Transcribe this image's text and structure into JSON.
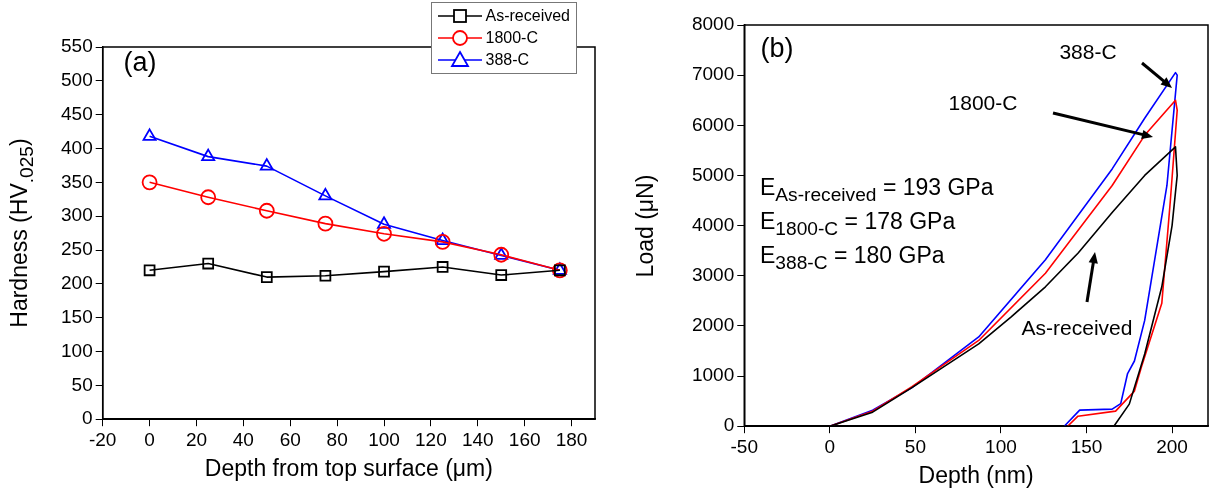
{
  "chart_data": [
    {
      "type": "line",
      "xlabel": "Depth from top surface (μm)",
      "ylabel": "Hardness (HV$_{.025}$)",
      "annotations": [
        "(a)"
      ],
      "x": [
        0,
        25,
        50,
        75,
        100,
        125,
        150,
        175
      ],
      "xlim": [
        -20,
        190
      ],
      "xticks": [
        -20,
        0,
        20,
        40,
        60,
        80,
        100,
        120,
        140,
        160,
        180
      ],
      "ylim": [
        0,
        550
      ],
      "yticks": [
        0,
        50,
        100,
        150,
        200,
        250,
        300,
        350,
        400,
        450,
        500,
        550
      ],
      "grid": false,
      "legend": "top right",
      "line_style": "solid",
      "series": [
        {
          "name": "As-received",
          "color": "#000000",
          "marker": "square",
          "values": [
            220,
            230,
            210,
            212,
            218,
            225,
            213,
            220
          ]
        },
        {
          "name": "1800-C",
          "color": "#ff0000",
          "marker": "circle",
          "values": [
            350,
            328,
            308,
            289,
            274,
            262,
            243,
            220
          ]
        },
        {
          "name": "388-C",
          "color": "#0000ff",
          "marker": "triangle",
          "values": [
            418,
            388,
            374,
            330,
            288,
            264,
            242,
            220
          ]
        }
      ]
    },
    {
      "type": "line",
      "xlabel": "Depth (nm)",
      "ylabel": "Load (μN)",
      "annotations": [
        "(b)",
        "E$_{As-received}$ = 193 GPa",
        "E$_{1800-C}$ = 178 GPa",
        "E$_{388-C}$ = 180 GPa",
        "388-C",
        "1800-C",
        "As-received"
      ],
      "xlim": [
        -50,
        221
      ],
      "xticks": [
        -50,
        0,
        50,
        100,
        150,
        200
      ],
      "ylim": [
        0,
        8000
      ],
      "yticks": [
        0,
        1000,
        2000,
        3000,
        4000,
        5000,
        6000,
        7000,
        8000
      ],
      "grid": false,
      "legend": false,
      "marker": "none",
      "line_style": "solid",
      "series": [
        {
          "color": "#000000",
          "x": [
            0,
            25,
            48,
            87,
            106,
            126,
            145,
            165,
            184,
            202,
            203,
            200,
            194,
            184,
            175,
            166
          ],
          "values": [
            0,
            280,
            770,
            1640,
            2180,
            2780,
            3450,
            4260,
            5000,
            5570,
            5000,
            4000,
            2780,
            1440,
            440,
            0
          ]
        },
        {
          "color": "#ff0000",
          "x": [
            0,
            25,
            48,
            87,
            126,
            165,
            184,
            202,
            203,
            199,
            194,
            182,
            178,
            167,
            145,
            139
          ],
          "values": [
            0,
            300,
            790,
            1710,
            3050,
            4800,
            5800,
            6500,
            6300,
            4500,
            2450,
            1170,
            700,
            300,
            200,
            0
          ]
        },
        {
          "color": "#0000ff",
          "x": [
            0,
            25,
            48,
            87,
            126,
            165,
            184,
            202,
            203,
            197,
            184,
            178,
            174,
            170,
            165,
            146,
            137
          ],
          "values": [
            0,
            320,
            770,
            1780,
            3320,
            5130,
            6140,
            7050,
            7000,
            4800,
            2110,
            1300,
            1050,
            450,
            340,
            320,
            0
          ]
        }
      ]
    }
  ]
}
